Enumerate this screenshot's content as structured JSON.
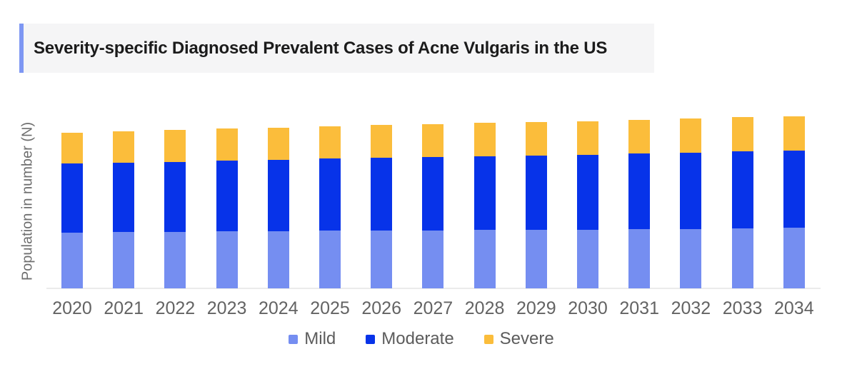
{
  "header": {
    "title": "Severity-specific Diagnosed Prevalent Cases of Acne Vulgaris in the US"
  },
  "chart_data": {
    "type": "bar",
    "stacked": true,
    "title": "Severity-specific Diagnosed Prevalent Cases of Acne Vulgaris in the US",
    "xlabel": "",
    "ylabel": "Population in number (N)",
    "categories": [
      "2020",
      "2021",
      "2022",
      "2023",
      "2024",
      "2025",
      "2026",
      "2027",
      "2028",
      "2029",
      "2030",
      "2031",
      "2032",
      "2033",
      "2034"
    ],
    "series": [
      {
        "name": "Mild",
        "color": "#758EF1",
        "values": [
          78,
          79,
          79,
          80,
          80,
          81,
          81,
          81,
          82,
          82,
          82,
          83,
          83,
          84,
          85
        ]
      },
      {
        "name": "Moderate",
        "color": "#0733E9",
        "values": [
          97,
          97,
          98,
          99,
          100,
          101,
          102,
          103,
          103,
          104,
          105,
          106,
          107,
          108,
          108
        ]
      },
      {
        "name": "Severe",
        "color": "#FBBD3B",
        "values": [
          43,
          44,
          45,
          45,
          45,
          45,
          46,
          46,
          47,
          47,
          47,
          47,
          48,
          48,
          48
        ]
      }
    ],
    "legend_position": "bottom",
    "grid": false,
    "y_axis_numeric_labels_shown": false,
    "values_note": "relative units estimated from stacked bar heights; chart shows no numeric axis ticks"
  },
  "colors": {
    "accent_bar": "#7E97F3",
    "title_background": "#F5F5F6",
    "title_text": "#1B1B1B",
    "axis_line": "#EBEBEB",
    "axis_text": "#636363",
    "ylabel_text": "#6E6E6E"
  }
}
